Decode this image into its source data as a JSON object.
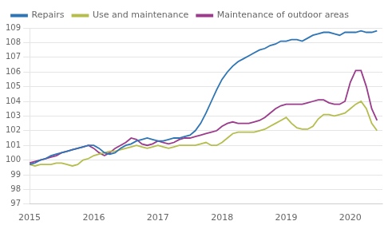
{
  "chart_data": {
    "type": "line",
    "x": [
      2015.0,
      2015.08333,
      2015.16666,
      2015.24999,
      2015.33332,
      2015.41665,
      2015.49998,
      2015.58331,
      2015.66664,
      2015.74997,
      2015.8333,
      2015.91663,
      2015.99996,
      2016.08329,
      2016.16662,
      2016.24995,
      2016.33328,
      2016.41661,
      2016.49994,
      2016.58327,
      2016.6666,
      2016.74993,
      2016.83326,
      2016.91659,
      2016.99992,
      2017.08325,
      2017.16658,
      2017.24991,
      2017.33324,
      2017.41657,
      2017.4999,
      2017.58323,
      2017.66656,
      2017.74989,
      2017.83322,
      2017.91655,
      2017.99988,
      2018.08321,
      2018.16654,
      2018.24987,
      2018.3332,
      2018.41653,
      2018.49986,
      2018.58319,
      2018.66652,
      2018.74985,
      2018.83318,
      2018.91651,
      2018.99984,
      2019.08317,
      2019.1665,
      2019.24983,
      2019.33316,
      2019.41649,
      2019.49982,
      2019.58315,
      2019.66648,
      2019.74981,
      2019.83314,
      2019.91647,
      2019.9998,
      2020.08313,
      2020.16646,
      2020.24979,
      2020.33312,
      2020.41645
    ],
    "series": [
      {
        "name": "Repairs",
        "color": "#2E75B6",
        "values": [
          99.7,
          99.8,
          100.0,
          100.1,
          100.3,
          100.4,
          100.5,
          100.6,
          100.7,
          100.8,
          100.9,
          101.0,
          101.0,
          100.8,
          100.5,
          100.4,
          100.5,
          100.8,
          101.0,
          101.1,
          101.3,
          101.4,
          101.5,
          101.4,
          101.3,
          101.3,
          101.4,
          101.5,
          101.5,
          101.6,
          101.7,
          102.0,
          102.5,
          103.2,
          104.0,
          104.8,
          105.5,
          106.0,
          106.4,
          106.7,
          106.9,
          107.1,
          107.3,
          107.5,
          107.6,
          107.8,
          107.9,
          108.1,
          108.1,
          108.2,
          108.2,
          108.1,
          108.3,
          108.5,
          108.6,
          108.7,
          108.7,
          108.6,
          108.5,
          108.7,
          108.7,
          108.7,
          108.8,
          108.7,
          108.7,
          108.8
        ]
      },
      {
        "name": "Use and maintenance",
        "color": "#B5BD4C",
        "values": [
          99.7,
          99.6,
          99.7,
          99.7,
          99.7,
          99.8,
          99.8,
          99.7,
          99.6,
          99.7,
          100.0,
          100.1,
          100.3,
          100.4,
          100.5,
          100.6,
          100.6,
          100.7,
          100.8,
          100.9,
          101.0,
          100.9,
          100.8,
          100.9,
          101.0,
          100.9,
          100.8,
          100.9,
          101.0,
          101.0,
          101.0,
          101.0,
          101.1,
          101.2,
          101.0,
          101.0,
          101.2,
          101.5,
          101.8,
          101.9,
          101.9,
          101.9,
          101.9,
          102.0,
          102.1,
          102.3,
          102.5,
          102.7,
          102.9,
          102.5,
          102.2,
          102.1,
          102.1,
          102.3,
          102.8,
          103.1,
          103.1,
          103.0,
          103.1,
          103.2,
          103.5,
          103.8,
          104.0,
          103.5,
          102.5,
          102.0
        ]
      },
      {
        "name": "Maintenance of outdoor areas",
        "color": "#9B3B8C",
        "values": [
          99.8,
          99.9,
          100.0,
          100.1,
          100.2,
          100.3,
          100.5,
          100.6,
          100.7,
          100.8,
          100.9,
          101.0,
          100.8,
          100.5,
          100.3,
          100.5,
          100.8,
          101.0,
          101.2,
          101.5,
          101.4,
          101.1,
          101.0,
          101.1,
          101.3,
          101.2,
          101.1,
          101.2,
          101.4,
          101.5,
          101.5,
          101.6,
          101.7,
          101.8,
          101.9,
          102.0,
          102.3,
          102.5,
          102.6,
          102.5,
          102.5,
          102.5,
          102.6,
          102.7,
          102.9,
          103.2,
          103.5,
          103.7,
          103.8,
          103.8,
          103.8,
          103.8,
          103.9,
          104.0,
          104.1,
          104.1,
          103.9,
          103.8,
          103.8,
          104.0,
          105.3,
          106.1,
          106.1,
          105.0,
          103.5,
          102.7
        ]
      }
    ],
    "xlim": [
      2015.0,
      2020.5
    ],
    "xticks": [
      2015,
      2016,
      2017,
      2018,
      2019,
      2020
    ],
    "ylim": [
      97,
      109
    ],
    "yticks": [
      97,
      98,
      99,
      100,
      101,
      102,
      103,
      104,
      105,
      106,
      107,
      108,
      109
    ],
    "grid": "y",
    "legend": "upper left"
  }
}
